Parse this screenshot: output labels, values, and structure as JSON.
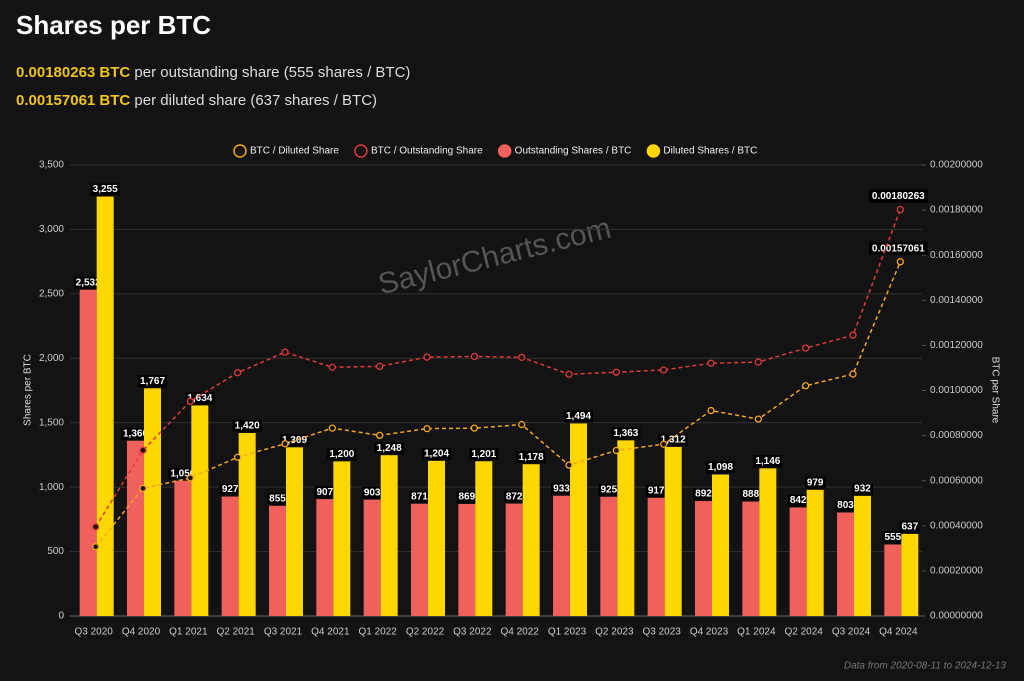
{
  "header": {
    "lines": [
      {
        "bold": "0.00180263 BTC",
        "text": "per outstanding share (555 shares / BTC)"
      },
      {
        "bold": "0.00157061 BTC",
        "text": "per diluted share (637 shares / BTC)"
      }
    ]
  },
  "watermark": "SaylorCharts.com",
  "footnote": "Data from 2020-08-11 to 2024-12-13",
  "chart_data": {
    "type": "bar",
    "title": "Shares per BTC",
    "categories": [
      "Q3 2020",
      "Q4 2020",
      "Q1 2021",
      "Q2 2021",
      "Q3 2021",
      "Q4 2021",
      "Q1 2022",
      "Q2 2022",
      "Q3 2022",
      "Q4 2022",
      "Q1 2023",
      "Q2 2023",
      "Q3 2023",
      "Q4 2023",
      "Q1 2024",
      "Q2 2024",
      "Q3 2024",
      "Q4 2024"
    ],
    "series": [
      {
        "name": "BTC / Diluted Share",
        "type": "line",
        "axis": "y2",
        "color": "#f5a623",
        "values": [
          0.000307,
          0.000566,
          0.000612,
          0.000704,
          0.000764,
          0.000833,
          0.000801,
          0.000831,
          0.000833,
          0.000849,
          0.000669,
          0.000734,
          0.000762,
          0.000911,
          0.000873,
          0.001021,
          0.001073,
          0.00157061
        ],
        "value_labels": [
          null,
          null,
          null,
          null,
          null,
          null,
          null,
          null,
          null,
          null,
          null,
          null,
          null,
          null,
          null,
          null,
          null,
          "0.00157061"
        ]
      },
      {
        "name": "BTC / Outstanding Share",
        "type": "line",
        "axis": "y2",
        "color": "#e03a3a",
        "values": [
          0.000395,
          0.000735,
          0.000952,
          0.001079,
          0.00117,
          0.001103,
          0.001107,
          0.001148,
          0.001151,
          0.001147,
          0.001072,
          0.001081,
          0.001091,
          0.001121,
          0.001126,
          0.001188,
          0.001245,
          0.00180263
        ],
        "value_labels": [
          null,
          null,
          null,
          null,
          null,
          null,
          null,
          null,
          null,
          null,
          null,
          null,
          null,
          null,
          null,
          null,
          null,
          "0.00180263"
        ]
      },
      {
        "name": "Outstanding Shares / BTC",
        "type": "bar",
        "color": "#f0605d",
        "values": [
          2532,
          1360,
          1050,
          927,
          855,
          907,
          903,
          871,
          869,
          872,
          933,
          925,
          917,
          892,
          888,
          842,
          803,
          555
        ],
        "value_labels": [
          "2,532",
          "1,360",
          "1,050",
          "927",
          "855",
          "907",
          "903",
          "871",
          "869",
          "872",
          "933",
          "925",
          "917",
          "892",
          "888",
          "842",
          "803",
          "555"
        ]
      },
      {
        "name": "Diluted Shares / BTC",
        "type": "bar",
        "color": "#ffd700",
        "values": [
          3255,
          1767,
          1634,
          1420,
          1309,
          1200,
          1248,
          1204,
          1201,
          1178,
          1494,
          1363,
          1312,
          1098,
          1146,
          979,
          932,
          637
        ],
        "value_labels": [
          "3,255",
          "1,767",
          "1,634",
          "1,420",
          "1,309",
          "1,200",
          "1,248",
          "1,204",
          "1,201",
          "1,178",
          "1,494",
          "1,363",
          "1,312",
          "1,098",
          "1,146",
          "979",
          "932",
          "637"
        ]
      }
    ],
    "y_label": "Shares per BTC",
    "y2_label": "BTC per Share",
    "ylim": [
      0,
      3500
    ],
    "yticks": [
      0,
      500,
      {
        "value": 1000,
        "label": "1,000"
      },
      {
        "value": 1500,
        "label": "1,500"
      },
      {
        "value": 2000,
        "label": "2,000"
      },
      {
        "value": 2500,
        "label": "2,500"
      },
      {
        "value": 3000,
        "label": "3,000"
      },
      {
        "value": 3500,
        "label": "3,500"
      }
    ],
    "y2lim": [
      0,
      0.002
    ],
    "y2ticks": [
      {
        "value": 0,
        "label": "0.00000000"
      },
      {
        "value": 0.0002,
        "label": "0.00020000"
      },
      {
        "value": 0.0004,
        "label": "0.00040000"
      },
      {
        "value": 0.0006,
        "label": "0.00060000"
      },
      {
        "value": 0.0008,
        "label": "0.00080000"
      },
      {
        "value": 0.001,
        "label": "0.00100000"
      },
      {
        "value": 0.0012,
        "label": "0.00120000"
      },
      {
        "value": 0.0014,
        "label": "0.00140000"
      },
      {
        "value": 0.0016,
        "label": "0.00160000"
      },
      {
        "value": 0.0018,
        "label": "0.00180000"
      },
      {
        "value": 0.002,
        "label": "0.00200000"
      }
    ],
    "grid": true,
    "legend": "top"
  }
}
